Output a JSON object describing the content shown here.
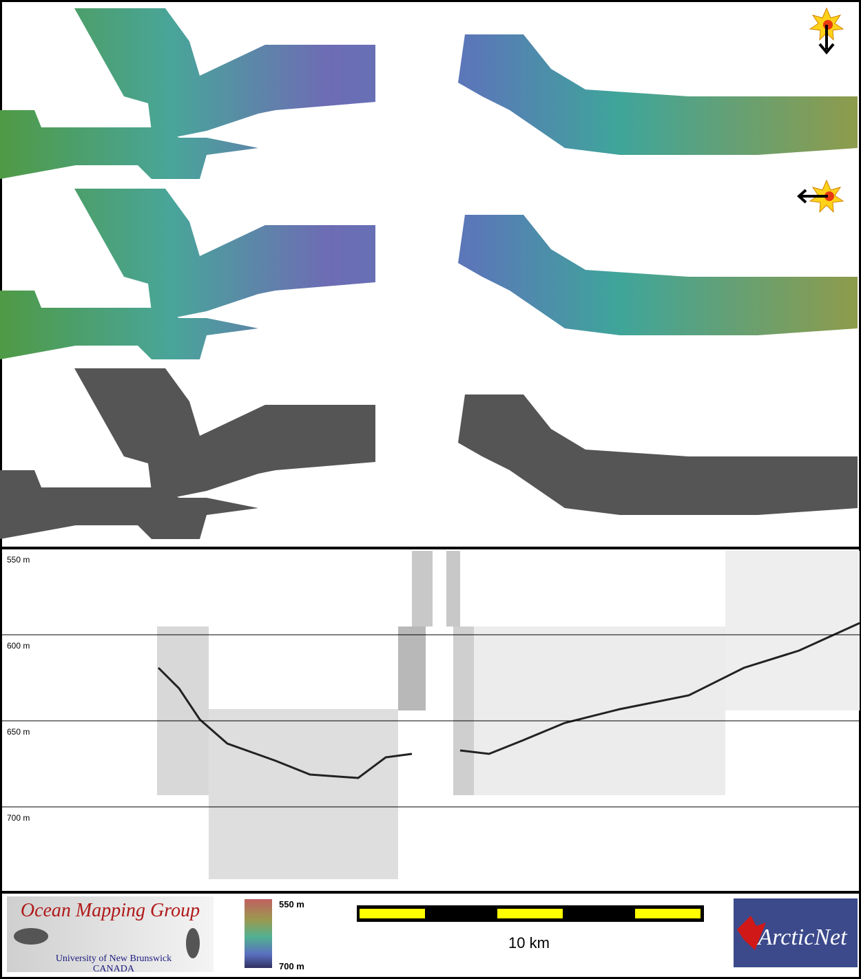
{
  "profile": {
    "depth_labels": [
      "550 m",
      "600 m",
      "650 m",
      "700 m"
    ]
  },
  "footer": {
    "logo": {
      "title": "Ocean Mapping Group",
      "institution": "University of New Brunswick",
      "country": "CANADA"
    },
    "colorbar": {
      "top": "550 m",
      "bottom": "700 m"
    },
    "scale_bar": {
      "label": "10 km"
    },
    "partner": "ArcticNet"
  }
}
